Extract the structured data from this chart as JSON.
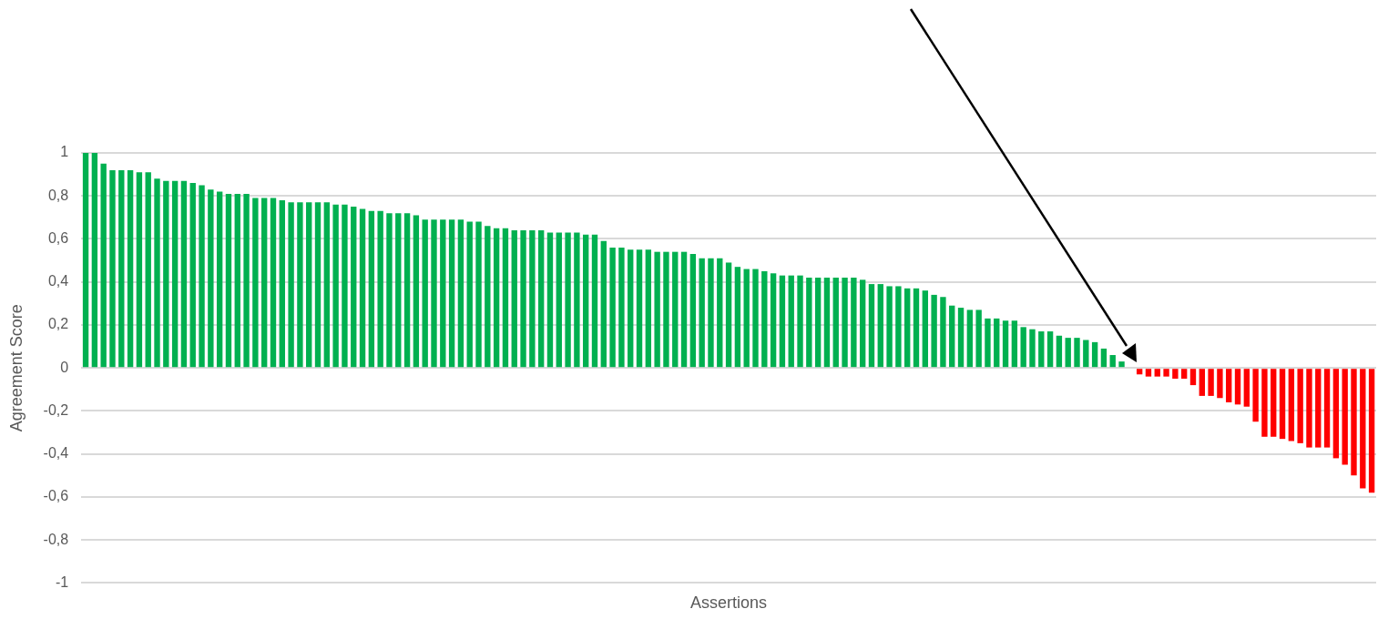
{
  "chart_data": {
    "type": "bar",
    "xlabel": "Assertions",
    "ylabel": "Agreement Score",
    "categories": [
      null,
      null,
      null,
      null,
      null,
      null,
      null,
      null,
      null,
      null,
      null,
      null,
      null,
      null,
      null,
      null,
      null,
      null,
      null,
      null,
      null,
      null,
      null,
      null,
      null,
      null,
      null,
      null,
      null,
      null,
      null,
      null,
      null,
      null,
      null,
      null,
      null,
      null,
      null,
      null,
      null,
      null,
      null,
      null,
      null,
      null,
      null,
      null,
      null,
      null,
      null,
      null,
      null,
      null,
      null,
      null,
      null,
      null,
      null,
      null,
      null,
      null,
      null,
      null,
      null,
      null,
      null,
      null,
      null,
      null,
      null,
      null,
      null,
      null,
      null,
      null,
      null,
      null,
      null,
      null,
      null,
      null,
      null,
      null,
      null,
      null,
      null,
      null,
      null,
      null,
      null,
      null,
      null,
      null,
      null,
      null,
      null,
      null,
      null,
      null,
      null,
      null,
      null,
      null,
      null,
      null,
      null,
      null,
      null,
      null,
      null,
      null,
      null,
      null,
      null,
      null,
      null,
      null,
      null,
      null,
      null,
      null,
      null,
      null,
      null,
      null,
      null,
      null,
      null,
      null,
      null,
      null,
      null,
      null,
      null,
      null,
      null,
      null,
      null,
      null,
      null,
      null,
      null,
      null,
      null
    ],
    "values": [
      1.0,
      1.0,
      0.95,
      0.92,
      0.92,
      0.92,
      0.91,
      0.91,
      0.88,
      0.87,
      0.87,
      0.87,
      0.86,
      0.85,
      0.83,
      0.82,
      0.81,
      0.81,
      0.81,
      0.79,
      0.79,
      0.79,
      0.78,
      0.77,
      0.77,
      0.77,
      0.77,
      0.77,
      0.76,
      0.76,
      0.75,
      0.74,
      0.73,
      0.73,
      0.72,
      0.72,
      0.72,
      0.71,
      0.69,
      0.69,
      0.69,
      0.69,
      0.69,
      0.68,
      0.68,
      0.66,
      0.65,
      0.65,
      0.64,
      0.64,
      0.64,
      0.64,
      0.63,
      0.63,
      0.63,
      0.63,
      0.62,
      0.62,
      0.59,
      0.56,
      0.56,
      0.55,
      0.55,
      0.55,
      0.54,
      0.54,
      0.54,
      0.54,
      0.53,
      0.51,
      0.51,
      0.51,
      0.49,
      0.47,
      0.46,
      0.46,
      0.45,
      0.44,
      0.43,
      0.43,
      0.43,
      0.42,
      0.42,
      0.42,
      0.42,
      0.42,
      0.42,
      0.41,
      0.39,
      0.39,
      0.38,
      0.38,
      0.37,
      0.37,
      0.36,
      0.34,
      0.33,
      0.29,
      0.28,
      0.27,
      0.27,
      0.23,
      0.23,
      0.22,
      0.22,
      0.19,
      0.18,
      0.17,
      0.17,
      0.15,
      0.14,
      0.14,
      0.13,
      0.12,
      0.09,
      0.06,
      0.03,
      0,
      -0.03,
      -0.04,
      -0.04,
      -0.04,
      -0.05,
      -0.05,
      -0.08,
      -0.13,
      -0.13,
      -0.14,
      -0.16,
      -0.17,
      -0.18,
      -0.25,
      -0.32,
      -0.32,
      -0.33,
      -0.34,
      -0.35,
      -0.37,
      -0.37,
      -0.37,
      -0.42,
      -0.45,
      -0.5,
      -0.56,
      -0.58
    ],
    "colors": [
      "#00b050",
      "#00b050",
      "#00b050",
      "#00b050",
      "#00b050",
      "#00b050",
      "#00b050",
      "#00b050",
      "#00b050",
      "#00b050",
      "#00b050",
      "#00b050",
      "#00b050",
      "#00b050",
      "#00b050",
      "#00b050",
      "#00b050",
      "#00b050",
      "#00b050",
      "#00b050",
      "#00b050",
      "#00b050",
      "#00b050",
      "#00b050",
      "#00b050",
      "#00b050",
      "#00b050",
      "#00b050",
      "#00b050",
      "#00b050",
      "#00b050",
      "#00b050",
      "#00b050",
      "#00b050",
      "#00b050",
      "#00b050",
      "#00b050",
      "#00b050",
      "#00b050",
      "#00b050",
      "#00b050",
      "#00b050",
      "#00b050",
      "#00b050",
      "#00b050",
      "#00b050",
      "#00b050",
      "#00b050",
      "#00b050",
      "#00b050",
      "#00b050",
      "#00b050",
      "#00b050",
      "#00b050",
      "#00b050",
      "#00b050",
      "#00b050",
      "#00b050",
      "#00b050",
      "#00b050",
      "#00b050",
      "#00b050",
      "#00b050",
      "#00b050",
      "#00b050",
      "#00b050",
      "#00b050",
      "#00b050",
      "#00b050",
      "#00b050",
      "#00b050",
      "#00b050",
      "#00b050",
      "#00b050",
      "#00b050",
      "#00b050",
      "#00b050",
      "#00b050",
      "#00b050",
      "#00b050",
      "#00b050",
      "#00b050",
      "#00b050",
      "#00b050",
      "#00b050",
      "#00b050",
      "#00b050",
      "#00b050",
      "#00b050",
      "#00b050",
      "#00b050",
      "#00b050",
      "#00b050",
      "#00b050",
      "#00b050",
      "#00b050",
      "#00b050",
      "#00b050",
      "#00b050",
      "#00b050",
      "#00b050",
      "#00b050",
      "#00b050",
      "#00b050",
      "#00b050",
      "#00b050",
      "#00b050",
      "#00b050",
      "#00b050",
      "#00b050",
      "#00b050",
      "#00b050",
      "#00b050",
      "#00b050",
      "#00b050",
      "#00b050",
      "#00b050",
      "#00b050",
      "#ff0000",
      "#ff0000",
      "#ff0000",
      "#ff0000",
      "#ff0000",
      "#ff0000",
      "#ff0000",
      "#ff0000",
      "#ff0000",
      "#ff0000",
      "#ff0000",
      "#ff0000",
      "#ff0000",
      "#ff0000",
      "#ff0000",
      "#ff0000",
      "#ff0000",
      "#ff0000",
      "#ff0000",
      "#ff0000",
      "#ff0000",
      "#ff0000",
      "#ff0000",
      "#ff0000",
      "#ff0000",
      "#ff0000",
      "#ff0000"
    ],
    "ylim": [
      -1,
      1
    ],
    "yticks": [
      {
        "value": -1,
        "label": "-1"
      },
      {
        "value": -0.8,
        "label": "-0,8"
      },
      {
        "value": -0.6,
        "label": "-0,6"
      },
      {
        "value": -0.4,
        "label": "-0,4"
      },
      {
        "value": -0.2,
        "label": "-0,2"
      },
      0,
      {
        "value": 0.2,
        "label": "0,2"
      },
      {
        "value": 0.4,
        "label": "0,4"
      },
      {
        "value": 0.6,
        "label": "0,6"
      },
      {
        "value": 0.8,
        "label": "0,8"
      },
      1
    ],
    "grid": "y",
    "legend": false
  }
}
